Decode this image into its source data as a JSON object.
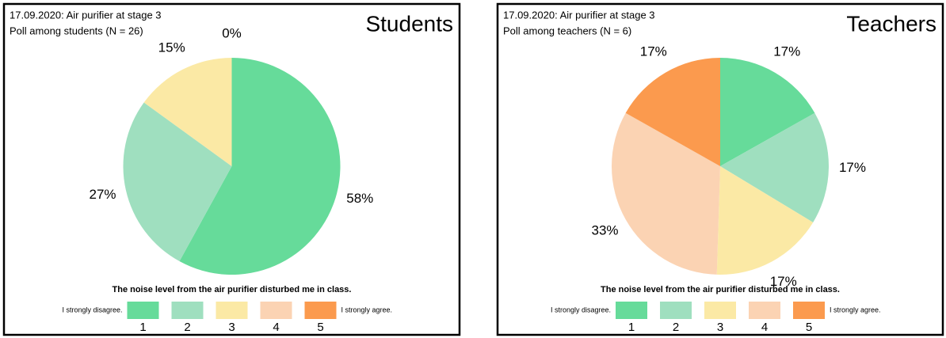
{
  "chart_data": [
    {
      "type": "pie",
      "title": "Students",
      "subtitle": [
        "17.09.2020: Air purifier at stage 3",
        "Poll among students (N = 26)"
      ],
      "caption": "The noise level from the air purifier disturbed me in class.",
      "legend_left": "I strongly disagree.",
      "legend_right": "I strongly agree.",
      "categories": [
        "1",
        "2",
        "3",
        "4",
        "5"
      ],
      "values": [
        58,
        27,
        15,
        0,
        null
      ],
      "value_labels": [
        "58%",
        "27%",
        "15%",
        "0%",
        null
      ],
      "colors": [
        "#66db9a",
        "#9fdfbf",
        "#fbe9a5",
        "#fbd3b3",
        "#fb9a4e"
      ]
    },
    {
      "type": "pie",
      "title": "Teachers",
      "subtitle": [
        "17.09.2020: Air purifier at stage 3",
        "Poll among teachers (N = 6)"
      ],
      "caption": "The noise level from the air purifier disturbed me in class.",
      "legend_left": "I strongly disagree.",
      "legend_right": "I strongly agree.",
      "categories": [
        "1",
        "2",
        "3",
        "4",
        "5"
      ],
      "values": [
        17,
        17,
        17,
        33,
        17
      ],
      "value_labels": [
        "17%",
        "17%",
        "17%",
        "33%",
        "17%"
      ],
      "colors": [
        "#66db9a",
        "#9fdfbf",
        "#fbe9a5",
        "#fbd3b3",
        "#fb9a4e"
      ]
    }
  ]
}
